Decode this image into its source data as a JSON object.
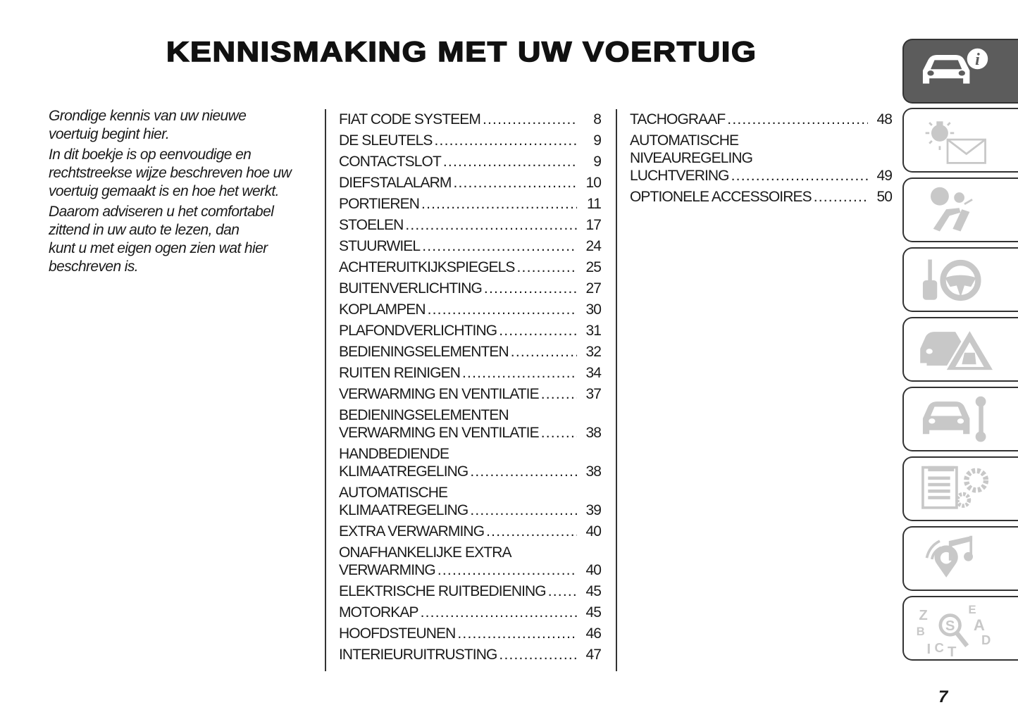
{
  "header": {
    "title": "KENNISMAKING MET UW VOERTUIG"
  },
  "intro": {
    "paragraphs": [
      [
        "Grondige kennis van uw nieuwe",
        "voertuig begint hier."
      ],
      [
        "In dit boekje is op eenvoudige en",
        "rechtstreekse wijze beschreven hoe uw",
        "voertuig gemaakt is en hoe het werkt."
      ],
      [
        "Daarom adviseren u het comfortabel",
        "zittend in uw auto te lezen, dan",
        "kunt u met eigen ogen zien wat hier",
        "beschreven is."
      ]
    ]
  },
  "toc": {
    "columns": [
      [
        {
          "lines": [
            "FIAT CODE SYSTEEM"
          ],
          "page": "8"
        },
        {
          "lines": [
            "DE SLEUTELS"
          ],
          "page": "9"
        },
        {
          "lines": [
            "CONTACTSLOT"
          ],
          "page": "9"
        },
        {
          "lines": [
            "DIEFSTALALARM"
          ],
          "page": "10"
        },
        {
          "lines": [
            "PORTIEREN"
          ],
          "page": "11"
        },
        {
          "lines": [
            "STOELEN"
          ],
          "page": "17"
        },
        {
          "lines": [
            "STUURWIEL"
          ],
          "page": "24"
        },
        {
          "lines": [
            "ACHTERUITKIJKSPIEGELS"
          ],
          "page": "25"
        },
        {
          "lines": [
            "BUITENVERLICHTING"
          ],
          "page": "27"
        },
        {
          "lines": [
            "KOPLAMPEN"
          ],
          "page": "30"
        },
        {
          "lines": [
            "PLAFONDVERLICHTING"
          ],
          "page": "31"
        },
        {
          "lines": [
            "BEDIENINGSELEMENTEN"
          ],
          "page": "32"
        },
        {
          "lines": [
            "RUITEN REINIGEN"
          ],
          "page": "34"
        },
        {
          "lines": [
            "VERWARMING EN VENTILATIE"
          ],
          "page": "37"
        },
        {
          "lines": [
            "BEDIENINGSELEMENTEN",
            "VERWARMING EN VENTILATIE"
          ],
          "page": "38"
        },
        {
          "lines": [
            "HANDBEDIENDE",
            "KLIMAATREGELING"
          ],
          "page": "38"
        },
        {
          "lines": [
            "AUTOMATISCHE",
            "KLIMAATREGELING"
          ],
          "page": "39"
        },
        {
          "lines": [
            "EXTRA VERWARMING"
          ],
          "page": "40"
        },
        {
          "lines": [
            "ONAFHANKELIJKE EXTRA",
            "VERWARMING"
          ],
          "page": "40"
        },
        {
          "lines": [
            "ELEKTRISCHE RUITBEDIENING"
          ],
          "page": "45"
        },
        {
          "lines": [
            "MOTORKAP"
          ],
          "page": "45"
        },
        {
          "lines": [
            "HOOFDSTEUNEN"
          ],
          "page": "46"
        },
        {
          "lines": [
            "INTERIEURUITRUSTING"
          ],
          "page": "47"
        }
      ],
      [
        {
          "lines": [
            "TACHOGRAAF"
          ],
          "page": "48"
        },
        {
          "lines": [
            "AUTOMATISCHE",
            "NIVEAUREGELING",
            "LUCHTVERING"
          ],
          "page": "49"
        },
        {
          "lines": [
            "OPTIONELE ACCESSOIRES"
          ],
          "page": "50"
        }
      ]
    ]
  },
  "tabs": [
    {
      "icon": "car-info-icon",
      "active": true
    },
    {
      "icon": "warning-light-message-icon",
      "active": false
    },
    {
      "icon": "airbag-seat-icon",
      "active": false
    },
    {
      "icon": "key-steering-wheel-icon",
      "active": false
    },
    {
      "icon": "car-warning-triangle-icon",
      "active": false
    },
    {
      "icon": "car-wrench-icon",
      "active": false
    },
    {
      "icon": "specs-gears-icon",
      "active": false
    },
    {
      "icon": "multimedia-icon",
      "active": false
    },
    {
      "icon": "index-search-icon",
      "active": false
    }
  ],
  "colors": {
    "tab_active": "#5c5c5c",
    "icon_inactive": "#c8c8c8",
    "icon_active": "#ffffff"
  },
  "footer": {
    "page_number": "7"
  }
}
